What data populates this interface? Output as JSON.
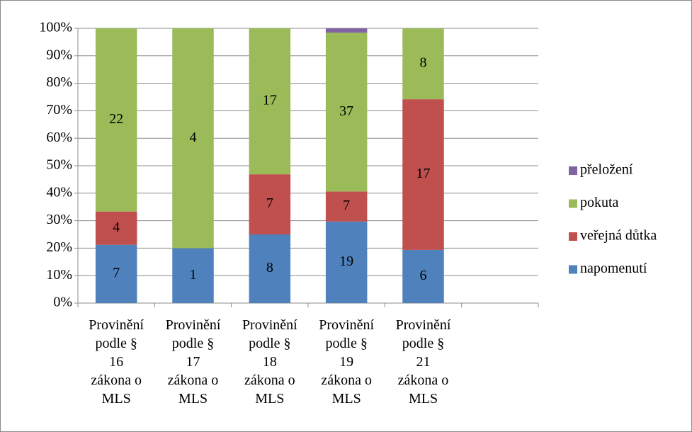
{
  "chart_data": {
    "type": "stacked_bar_percent",
    "categories": [
      "Provinění podle § 16 zákona o MLS",
      "Provinění podle § 17 zákona o MLS",
      "Provinění podle § 18 zákona o MLS",
      "Provinění podle § 19 zákona o MLS",
      "Provinění podle § 21 zákona o MLS"
    ],
    "series": [
      {
        "name": "napomenutí",
        "color": "#4f81bd",
        "values": [
          7,
          1,
          8,
          19,
          6
        ]
      },
      {
        "name": "veřejná důtka",
        "color": "#c0504d",
        "values": [
          4,
          0,
          7,
          7,
          17
        ]
      },
      {
        "name": "pokuta",
        "color": "#9bbb59",
        "values": [
          22,
          4,
          17,
          37,
          8
        ]
      },
      {
        "name": "přeložení",
        "color": "#8064a2",
        "values": [
          0,
          0,
          0,
          1,
          0
        ],
        "show_labels": false
      }
    ],
    "ylim": [
      0,
      100
    ],
    "yticks": [
      {
        "value": 0,
        "label": "0%"
      },
      {
        "value": 10,
        "label": "10%"
      },
      {
        "value": 20,
        "label": "20%"
      },
      {
        "value": 30,
        "label": "30%"
      },
      {
        "value": 40,
        "label": "40%"
      },
      {
        "value": 50,
        "label": "50%"
      },
      {
        "value": 60,
        "label": "60%"
      },
      {
        "value": 70,
        "label": "70%"
      },
      {
        "value": 80,
        "label": "80%"
      },
      {
        "value": 90,
        "label": "90%"
      },
      {
        "value": 100,
        "label": "100%"
      }
    ],
    "grid": true,
    "legend": "right"
  }
}
